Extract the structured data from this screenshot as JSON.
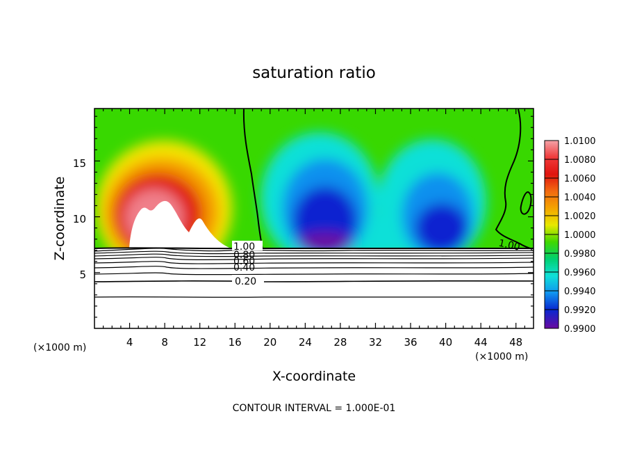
{
  "chart_data": {
    "type": "heatmap",
    "title": "saturation ratio",
    "xlabel": "X-coordinate",
    "ylabel": "Z-coordinate",
    "x_unit": "(×1000 m)",
    "xlim": [
      0,
      50
    ],
    "ylim": [
      0,
      19.7
    ],
    "x_ticks": [
      "4",
      "8",
      "12",
      "16",
      "20",
      "24",
      "28",
      "32",
      "36",
      "40",
      "44",
      "48"
    ],
    "y_ticks": [
      "5",
      "10",
      "15"
    ],
    "contour_interval_text": "CONTOUR INTERVAL = 1.000E-01",
    "colorbar": {
      "labels": [
        "1.0100",
        "1.0080",
        "1.0060",
        "1.0040",
        "1.0020",
        "1.0000",
        "0.9980",
        "0.9960",
        "0.9940",
        "0.9920",
        "0.9900"
      ],
      "min": 0.99,
      "max": 1.01
    },
    "contour_labels": [
      {
        "text": "1.00"
      },
      {
        "text": "0.80"
      },
      {
        "text": "0.60"
      },
      {
        "text": "0.40"
      },
      {
        "text": "0.20"
      },
      {
        "text": "1.00"
      }
    ],
    "features": [
      {
        "region": "supersaturated cloud",
        "x_range": [
          1,
          18
        ],
        "z_range": [
          7.2,
          17
        ],
        "peak_value": 1.01
      },
      {
        "region": "subsaturated downdraft",
        "x_range": [
          21,
          44
        ],
        "z_range": [
          7.2,
          14
        ],
        "min_value": 0.99
      }
    ]
  }
}
